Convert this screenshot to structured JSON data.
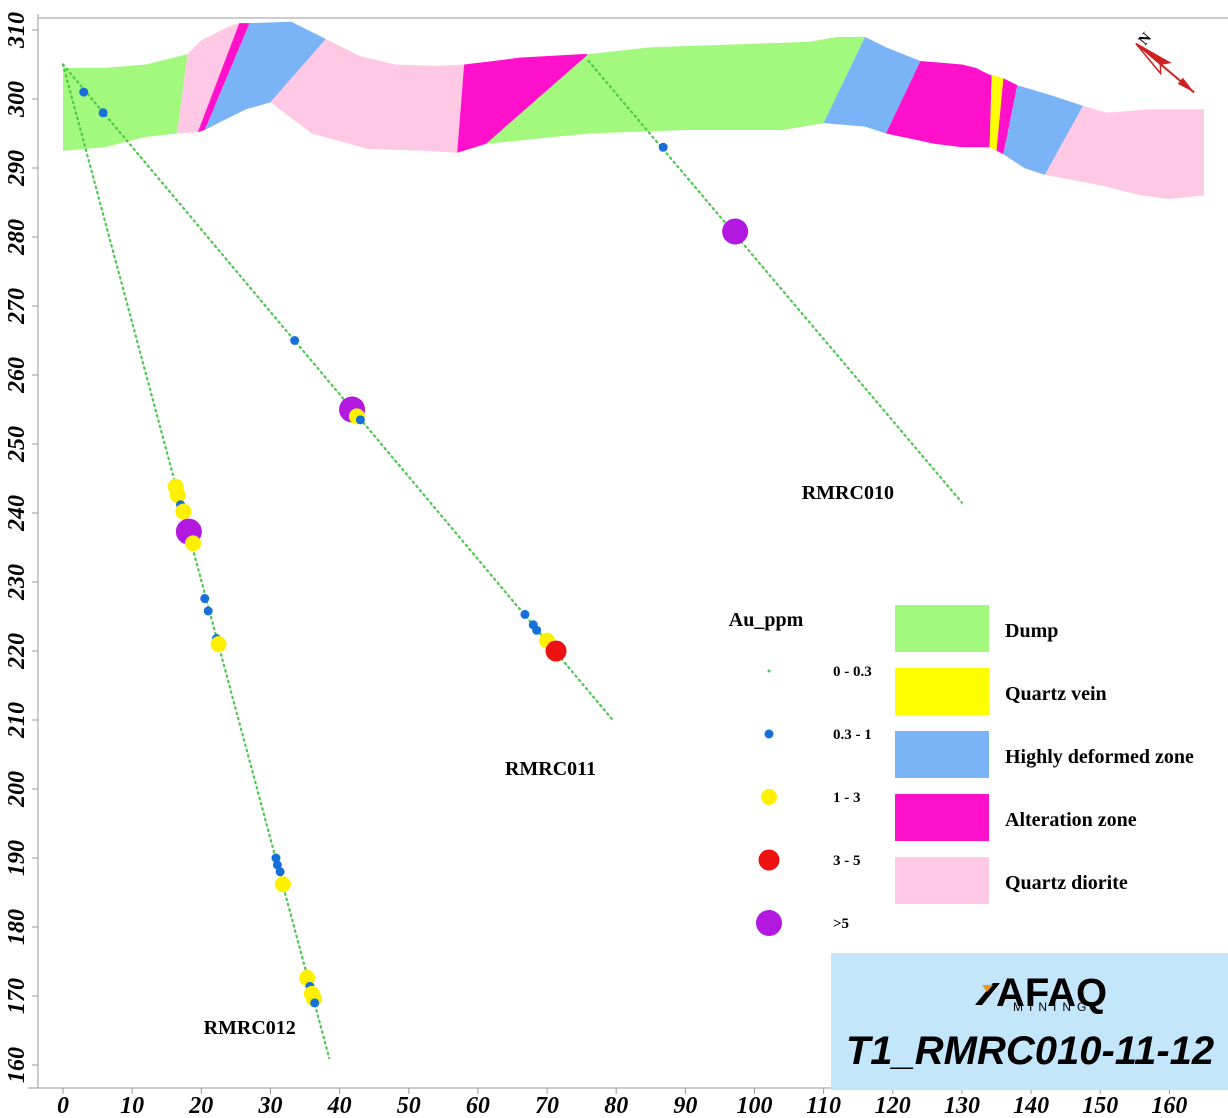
{
  "chart_data": {
    "type": "scatter",
    "title": "T1_RMRC010-11-12",
    "x_range": [
      0,
      167
    ],
    "y_range": [
      158,
      311
    ],
    "x_ticks": [
      0,
      10,
      20,
      30,
      40,
      50,
      60,
      70,
      80,
      90,
      100,
      110,
      120,
      130,
      140,
      150,
      160
    ],
    "y_ticks": [
      160,
      170,
      180,
      190,
      200,
      210,
      220,
      230,
      240,
      250,
      260,
      270,
      280,
      290,
      300,
      310
    ],
    "drillholes": [
      {
        "name": "RMRC010",
        "collar": [
          76,
          305.5
        ],
        "end": [
          130,
          241.5
        ]
      },
      {
        "name": "RMRC011",
        "collar": [
          0,
          305
        ],
        "end": [
          79.5,
          210
        ]
      },
      {
        "name": "RMRC012",
        "collar": [
          0,
          305
        ],
        "end": [
          38.5,
          161
        ]
      }
    ],
    "hole_labels": [
      {
        "name": "RMRC010",
        "at": [
          113.5,
          242
        ]
      },
      {
        "name": "RMRC011",
        "at": [
          70.5,
          202
        ]
      },
      {
        "name": "RMRC012",
        "at": [
          27,
          164.5
        ]
      }
    ],
    "assays": [
      {
        "x": 3,
        "y": 301,
        "cls": "0.3 - 1"
      },
      {
        "x": 5.8,
        "y": 298,
        "cls": "0.3 - 1"
      },
      {
        "x": 86.8,
        "y": 293,
        "cls": "0.3 - 1"
      },
      {
        "x": 97.2,
        "y": 280.8,
        "cls": ">5"
      },
      {
        "x": 33.5,
        "y": 265,
        "cls": "0.3 - 1"
      },
      {
        "x": 41.8,
        "y": 255,
        "cls": ">5"
      },
      {
        "x": 42.5,
        "y": 254,
        "cls": "1 - 3"
      },
      {
        "x": 43,
        "y": 253.5,
        "cls": "0.3 - 1"
      },
      {
        "x": 66.8,
        "y": 225.3,
        "cls": "0.3 - 1"
      },
      {
        "x": 68,
        "y": 223.8,
        "cls": "0.3 - 1"
      },
      {
        "x": 68.5,
        "y": 223,
        "cls": "0.3 - 1"
      },
      {
        "x": 70,
        "y": 221.5,
        "cls": "1 - 3"
      },
      {
        "x": 71.3,
        "y": 220,
        "cls": "3 - 5"
      },
      {
        "x": 16.3,
        "y": 243.8,
        "cls": "1 - 3"
      },
      {
        "x": 16.6,
        "y": 242.6,
        "cls": "1 - 3"
      },
      {
        "x": 17,
        "y": 241.2,
        "cls": "0.3 - 1"
      },
      {
        "x": 17.4,
        "y": 240.2,
        "cls": "1 - 3"
      },
      {
        "x": 18.2,
        "y": 237.3,
        "cls": ">5"
      },
      {
        "x": 18.8,
        "y": 235.6,
        "cls": "1 - 3"
      },
      {
        "x": 20.5,
        "y": 227.6,
        "cls": "0.3 - 1"
      },
      {
        "x": 21,
        "y": 225.8,
        "cls": "0.3 - 1"
      },
      {
        "x": 22.2,
        "y": 221.8,
        "cls": "0.3 - 1"
      },
      {
        "x": 22.5,
        "y": 221,
        "cls": "1 - 3"
      },
      {
        "x": 30.8,
        "y": 190,
        "cls": "0.3 - 1"
      },
      {
        "x": 31,
        "y": 189,
        "cls": "0.3 - 1"
      },
      {
        "x": 31.4,
        "y": 188,
        "cls": "0.3 - 1"
      },
      {
        "x": 31.8,
        "y": 186.2,
        "cls": "1 - 3"
      },
      {
        "x": 35.3,
        "y": 172.6,
        "cls": "1 - 3"
      },
      {
        "x": 35.7,
        "y": 171.4,
        "cls": "0.3 - 1"
      },
      {
        "x": 36,
        "y": 170.3,
        "cls": "1 - 3"
      },
      {
        "x": 36.3,
        "y": 169.6,
        "cls": "1 - 3"
      },
      {
        "x": 36.4,
        "y": 169,
        "cls": "0.3 - 1"
      }
    ],
    "au_legend": {
      "title": "Au_ppm",
      "classes": [
        {
          "label": "0 - 0.3",
          "color": "#4CC84C"
        },
        {
          "label": "0.3 - 1",
          "color": "#1670D8"
        },
        {
          "label": "1 - 3",
          "color": "#FFF000"
        },
        {
          "label": "3 - 5",
          "color": "#EE1111"
        },
        {
          "label": ">5",
          "color": "#B318E0"
        }
      ]
    },
    "lithology_legend": [
      {
        "label": "Dump",
        "color": "#A3F97D"
      },
      {
        "label": "Quartz vein",
        "color": "#FFFF00"
      },
      {
        "label": "Highly deformed zone",
        "color": "#7AB3F6"
      },
      {
        "label": "Alteration zone",
        "color": "#FF11CC"
      },
      {
        "label": "Quartz diorite",
        "color": "#FFC8E5"
      }
    ],
    "lithology_units": [
      {
        "lith": "Dump",
        "poly": [
          [
            0,
            304.5
          ],
          [
            6,
            304.5
          ],
          [
            12,
            305
          ],
          [
            18,
            306.5
          ],
          [
            16.5,
            295
          ],
          [
            12,
            294.5
          ],
          [
            6,
            293
          ],
          [
            0,
            292.5
          ]
        ]
      },
      {
        "lith": "Quartz diorite",
        "poly": [
          [
            18,
            306.5
          ],
          [
            20,
            308.5
          ],
          [
            24,
            310.5
          ],
          [
            25.5,
            311
          ],
          [
            19.5,
            295.2
          ],
          [
            16.5,
            295
          ]
        ]
      },
      {
        "lith": "Alteration zone",
        "poly": [
          [
            25.5,
            311
          ],
          [
            27,
            311
          ],
          [
            20.5,
            295.5
          ],
          [
            19.5,
            295.2
          ]
        ]
      },
      {
        "lith": "Highly deformed zone",
        "poly": [
          [
            27,
            311
          ],
          [
            33,
            311.2
          ],
          [
            38,
            308.7
          ],
          [
            30,
            299.5
          ],
          [
            26.5,
            298.5
          ],
          [
            23,
            296.8
          ],
          [
            20.5,
            295.5
          ]
        ]
      },
      {
        "lith": "Quartz diorite",
        "poly": [
          [
            38,
            308.7
          ],
          [
            43,
            306.2
          ],
          [
            48,
            305
          ],
          [
            54,
            304.8
          ],
          [
            58,
            305
          ],
          [
            57,
            292.2
          ],
          [
            52,
            292.5
          ],
          [
            44,
            292.8
          ],
          [
            36,
            295
          ],
          [
            30,
            299.5
          ]
        ]
      },
      {
        "lith": "Alteration zone",
        "poly": [
          [
            58,
            305
          ],
          [
            63,
            305.6
          ],
          [
            66,
            306
          ],
          [
            75,
            306.5
          ],
          [
            76,
            306.5
          ],
          [
            61.2,
            293.5
          ],
          [
            57,
            292.2
          ]
        ]
      },
      {
        "lith": "Dump",
        "poly": [
          [
            76,
            306.5
          ],
          [
            85,
            307.5
          ],
          [
            100,
            308
          ],
          [
            108,
            308.3
          ],
          [
            112,
            309
          ],
          [
            116,
            309
          ],
          [
            110,
            296.5
          ],
          [
            104,
            295.5
          ],
          [
            90,
            295.5
          ],
          [
            76,
            295
          ],
          [
            61.2,
            293.5
          ]
        ]
      },
      {
        "lith": "Highly deformed zone",
        "poly": [
          [
            116,
            309
          ],
          [
            119,
            307.5
          ],
          [
            124,
            305.5
          ],
          [
            119,
            295
          ],
          [
            116,
            296
          ],
          [
            110,
            296.5
          ]
        ]
      },
      {
        "lith": "Alteration zone",
        "poly": [
          [
            124,
            305.5
          ],
          [
            130,
            305
          ],
          [
            132,
            304.5
          ],
          [
            134,
            303.5
          ],
          [
            134.3,
            303.5
          ],
          [
            134,
            293
          ],
          [
            130,
            293
          ],
          [
            126,
            293.5
          ],
          [
            119,
            295
          ]
        ]
      },
      {
        "lith": "Quartz vein",
        "poly": [
          [
            134.3,
            303.5
          ],
          [
            136,
            303
          ],
          [
            135,
            292.5
          ],
          [
            134,
            293
          ]
        ]
      },
      {
        "lith": "Alteration zone",
        "poly": [
          [
            136,
            303
          ],
          [
            138,
            302
          ],
          [
            136,
            292
          ],
          [
            135,
            292.5
          ]
        ]
      },
      {
        "lith": "Highly deformed zone",
        "poly": [
          [
            138,
            302
          ],
          [
            143,
            300.5
          ],
          [
            147.5,
            299
          ],
          [
            142,
            289
          ],
          [
            139,
            290
          ],
          [
            136,
            292
          ]
        ]
      },
      {
        "lith": "Quartz diorite",
        "poly": [
          [
            147.5,
            299
          ],
          [
            151,
            298
          ],
          [
            157,
            298.5
          ],
          [
            165,
            298.5
          ],
          [
            165,
            286
          ],
          [
            160,
            285.5
          ],
          [
            156,
            286
          ],
          [
            150,
            287.5
          ],
          [
            142,
            289
          ]
        ]
      }
    ],
    "grid": false,
    "legend_position": "right"
  },
  "logo": {
    "name": "AFAQ",
    "subtitle": "MINING"
  },
  "north_arrow": {
    "label": "N",
    "icon": "north-arrow-icon"
  }
}
